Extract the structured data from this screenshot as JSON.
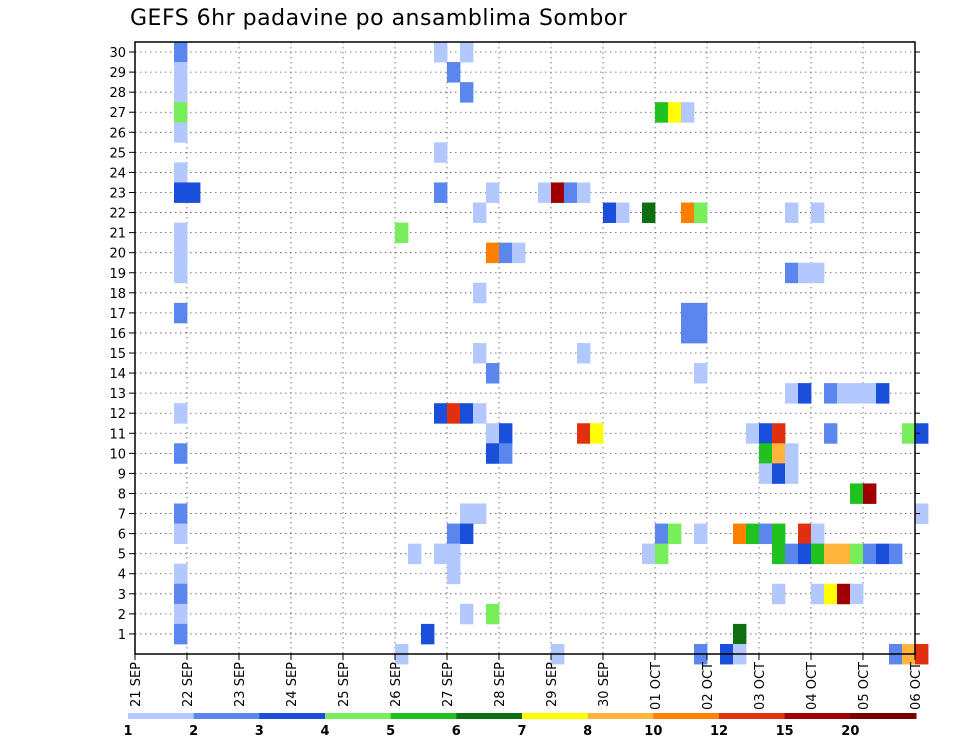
{
  "chart_data": {
    "type": "heatmap",
    "title": "GEFS 6hr padavine po ansamblima Sombor",
    "xlabel": "",
    "ylabel": "",
    "x_tick_labels": [
      "21 SEP",
      "22 SEP",
      "23 SEP",
      "24 SEP",
      "25 SEP",
      "26 SEP",
      "27 SEP",
      "28 SEP",
      "29 SEP",
      "30 SEP",
      "01 OCT",
      "02 OCT",
      "03 OCT",
      "04 OCT",
      "05 OCT",
      "06 OCT"
    ],
    "y_tick_labels": [
      "1",
      "2",
      "3",
      "4",
      "5",
      "6",
      "7",
      "8",
      "9",
      "10",
      "11",
      "12",
      "13",
      "14",
      "15",
      "16",
      "17",
      "18",
      "19",
      "20",
      "21",
      "22",
      "23",
      "24",
      "25",
      "26",
      "27",
      "28",
      "29",
      "30"
    ],
    "legend_labels": [
      "1",
      "2",
      "3",
      "4",
      "5",
      "6",
      "7",
      "8",
      "10",
      "12",
      "15",
      "20"
    ],
    "legend_colors": [
      "#b3c8ff",
      "#5b86ee",
      "#1a4fdc",
      "#78ee5a",
      "#1fc21f",
      "#0f6e0f",
      "#ffff00",
      "#ffb43c",
      "#ff7f00",
      "#e03010",
      "#a00000",
      "#7a0000"
    ],
    "grid": true,
    "columns_per_day": 4,
    "cells": [
      {
        "member": 30,
        "step": 3,
        "value": 2
      },
      {
        "member": 30,
        "step": 23,
        "value": 1
      },
      {
        "member": 30,
        "step": 25,
        "value": 1
      },
      {
        "member": 29,
        "step": 3,
        "value": 1
      },
      {
        "member": 29,
        "step": 24,
        "value": 2
      },
      {
        "member": 28,
        "step": 3,
        "value": 1
      },
      {
        "member": 28,
        "step": 25,
        "value": 2
      },
      {
        "member": 27,
        "step": 3,
        "value": 4
      },
      {
        "member": 27,
        "step": 40,
        "value": 5
      },
      {
        "member": 27,
        "step": 41,
        "value": 7
      },
      {
        "member": 27,
        "step": 42,
        "value": 1
      },
      {
        "member": 26,
        "step": 3,
        "value": 1
      },
      {
        "member": 25,
        "step": 23,
        "value": 1
      },
      {
        "member": 24,
        "step": 3,
        "value": 1
      },
      {
        "member": 23,
        "step": 3,
        "value": 3
      },
      {
        "member": 23,
        "step": 4,
        "value": 3
      },
      {
        "member": 23,
        "step": 23,
        "value": 2
      },
      {
        "member": 23,
        "step": 27,
        "value": 1
      },
      {
        "member": 23,
        "step": 31,
        "value": 1
      },
      {
        "member": 23,
        "step": 32,
        "value": 15
      },
      {
        "member": 23,
        "step": 33,
        "value": 2
      },
      {
        "member": 23,
        "step": 34,
        "value": 1
      },
      {
        "member": 22,
        "step": 26,
        "value": 1
      },
      {
        "member": 22,
        "step": 36,
        "value": 3
      },
      {
        "member": 22,
        "step": 37,
        "value": 1
      },
      {
        "member": 22,
        "step": 39,
        "value": 6
      },
      {
        "member": 22,
        "step": 42,
        "value": 10
      },
      {
        "member": 22,
        "step": 43,
        "value": 4
      },
      {
        "member": 22,
        "step": 50,
        "value": 1
      },
      {
        "member": 22,
        "step": 52,
        "value": 1
      },
      {
        "member": 21,
        "step": 3,
        "value": 1
      },
      {
        "member": 21,
        "step": 20,
        "value": 4
      },
      {
        "member": 20,
        "step": 3,
        "value": 1
      },
      {
        "member": 20,
        "step": 27,
        "value": 10
      },
      {
        "member": 20,
        "step": 28,
        "value": 2
      },
      {
        "member": 20,
        "step": 29,
        "value": 1
      },
      {
        "member": 19,
        "step": 3,
        "value": 1
      },
      {
        "member": 19,
        "step": 50,
        "value": 2
      },
      {
        "member": 19,
        "step": 51,
        "value": 1
      },
      {
        "member": 19,
        "step": 52,
        "value": 1
      },
      {
        "member": 18,
        "step": 26,
        "value": 1
      },
      {
        "member": 17,
        "step": 3,
        "value": 2
      },
      {
        "member": 17,
        "step": 42,
        "value": 2
      },
      {
        "member": 17,
        "step": 43,
        "value": 2
      },
      {
        "member": 16,
        "step": 42,
        "value": 2
      },
      {
        "member": 16,
        "step": 43,
        "value": 2
      },
      {
        "member": 15,
        "step": 26,
        "value": 1
      },
      {
        "member": 15,
        "step": 34,
        "value": 1
      },
      {
        "member": 14,
        "step": 27,
        "value": 2
      },
      {
        "member": 14,
        "step": 43,
        "value": 1
      },
      {
        "member": 13,
        "step": 50,
        "value": 1
      },
      {
        "member": 13,
        "step": 51,
        "value": 3
      },
      {
        "member": 13,
        "step": 53,
        "value": 2
      },
      {
        "member": 13,
        "step": 54,
        "value": 1
      },
      {
        "member": 13,
        "step": 55,
        "value": 1
      },
      {
        "member": 13,
        "step": 56,
        "value": 1
      },
      {
        "member": 13,
        "step": 57,
        "value": 3
      },
      {
        "member": 12,
        "step": 3,
        "value": 1
      },
      {
        "member": 12,
        "step": 23,
        "value": 3
      },
      {
        "member": 12,
        "step": 24,
        "value": 12
      },
      {
        "member": 12,
        "step": 25,
        "value": 3
      },
      {
        "member": 12,
        "step": 26,
        "value": 1
      },
      {
        "member": 11,
        "step": 27,
        "value": 1
      },
      {
        "member": 11,
        "step": 28,
        "value": 3
      },
      {
        "member": 11,
        "step": 34,
        "value": 12
      },
      {
        "member": 11,
        "step": 35,
        "value": 7
      },
      {
        "member": 11,
        "step": 47,
        "value": 1
      },
      {
        "member": 11,
        "step": 48,
        "value": 3
      },
      {
        "member": 11,
        "step": 49,
        "value": 12
      },
      {
        "member": 11,
        "step": 53,
        "value": 2
      },
      {
        "member": 11,
        "step": 59,
        "value": 4
      },
      {
        "member": 11,
        "step": 60,
        "value": 3
      },
      {
        "member": 10,
        "step": 3,
        "value": 2
      },
      {
        "member": 10,
        "step": 27,
        "value": 3
      },
      {
        "member": 10,
        "step": 28,
        "value": 2
      },
      {
        "member": 10,
        "step": 48,
        "value": 5
      },
      {
        "member": 10,
        "step": 49,
        "value": 8
      },
      {
        "member": 10,
        "step": 50,
        "value": 1
      },
      {
        "member": 9,
        "step": 48,
        "value": 1
      },
      {
        "member": 9,
        "step": 49,
        "value": 3
      },
      {
        "member": 9,
        "step": 50,
        "value": 1
      },
      {
        "member": 8,
        "step": 55,
        "value": 5
      },
      {
        "member": 8,
        "step": 56,
        "value": 15
      },
      {
        "member": 7,
        "step": 3,
        "value": 2
      },
      {
        "member": 7,
        "step": 25,
        "value": 1
      },
      {
        "member": 7,
        "step": 26,
        "value": 1
      },
      {
        "member": 7,
        "step": 60,
        "value": 1
      },
      {
        "member": 6,
        "step": 3,
        "value": 1
      },
      {
        "member": 6,
        "step": 24,
        "value": 2
      },
      {
        "member": 6,
        "step": 25,
        "value": 3
      },
      {
        "member": 6,
        "step": 40,
        "value": 2
      },
      {
        "member": 6,
        "step": 41,
        "value": 4
      },
      {
        "member": 6,
        "step": 43,
        "value": 1
      },
      {
        "member": 6,
        "step": 46,
        "value": 10
      },
      {
        "member": 6,
        "step": 47,
        "value": 5
      },
      {
        "member": 6,
        "step": 48,
        "value": 2
      },
      {
        "member": 6,
        "step": 49,
        "value": 5
      },
      {
        "member": 6,
        "step": 51,
        "value": 12
      },
      {
        "member": 6,
        "step": 52,
        "value": 1
      },
      {
        "member": 5,
        "step": 21,
        "value": 1
      },
      {
        "member": 5,
        "step": 23,
        "value": 1
      },
      {
        "member": 5,
        "step": 24,
        "value": 1
      },
      {
        "member": 5,
        "step": 39,
        "value": 1
      },
      {
        "member": 5,
        "step": 40,
        "value": 4
      },
      {
        "member": 5,
        "step": 49,
        "value": 5
      },
      {
        "member": 5,
        "step": 50,
        "value": 2
      },
      {
        "member": 5,
        "step": 51,
        "value": 3
      },
      {
        "member": 5,
        "step": 52,
        "value": 5
      },
      {
        "member": 5,
        "step": 53,
        "value": 8
      },
      {
        "member": 5,
        "step": 54,
        "value": 8
      },
      {
        "member": 5,
        "step": 55,
        "value": 4
      },
      {
        "member": 5,
        "step": 56,
        "value": 2
      },
      {
        "member": 5,
        "step": 57,
        "value": 3
      },
      {
        "member": 5,
        "step": 58,
        "value": 2
      },
      {
        "member": 4,
        "step": 3,
        "value": 1
      },
      {
        "member": 4,
        "step": 24,
        "value": 1
      },
      {
        "member": 3,
        "step": 3,
        "value": 2
      },
      {
        "member": 3,
        "step": 49,
        "value": 1
      },
      {
        "member": 3,
        "step": 52,
        "value": 1
      },
      {
        "member": 3,
        "step": 53,
        "value": 7
      },
      {
        "member": 3,
        "step": 54,
        "value": 15
      },
      {
        "member": 3,
        "step": 55,
        "value": 1
      },
      {
        "member": 2,
        "step": 3,
        "value": 1
      },
      {
        "member": 2,
        "step": 25,
        "value": 1
      },
      {
        "member": 2,
        "step": 27,
        "value": 4
      },
      {
        "member": 1,
        "step": 3,
        "value": 2
      },
      {
        "member": 1,
        "step": 22,
        "value": 3
      },
      {
        "member": 1,
        "step": 46,
        "value": 6
      },
      {
        "member": 0,
        "step": 20,
        "value": 1
      },
      {
        "member": 0,
        "step": 32,
        "value": 1
      },
      {
        "member": 0,
        "step": 43,
        "value": 2
      },
      {
        "member": 0,
        "step": 45,
        "value": 3
      },
      {
        "member": 0,
        "step": 46,
        "value": 1
      },
      {
        "member": 0,
        "step": 58,
        "value": 2
      },
      {
        "member": 0,
        "step": 59,
        "value": 8
      },
      {
        "member": 0,
        "step": 60,
        "value": 12
      }
    ]
  }
}
